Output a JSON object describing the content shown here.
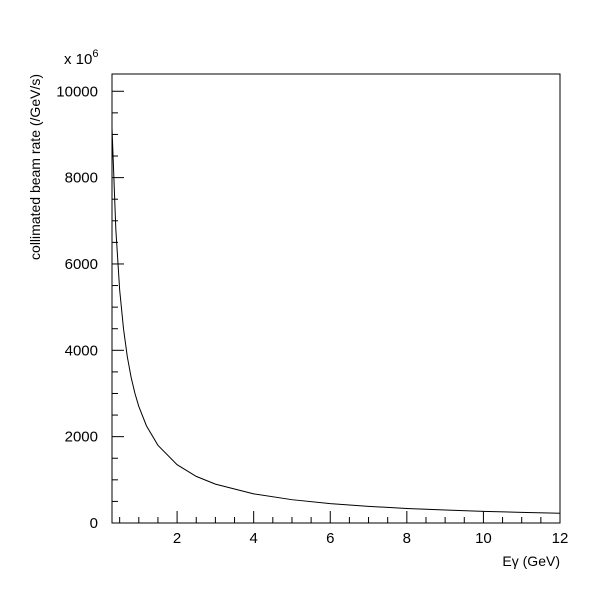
{
  "chart_data": {
    "type": "line",
    "title": "",
    "xlabel": "Eγ (GeV)",
    "ylabel": "collimated beam rate (/GeV/s)",
    "y_multiplier": "x 10",
    "y_multiplier_exponent": "6",
    "xlim": [
      0.3,
      12
    ],
    "ylim": [
      0,
      10400
    ],
    "x_ticks": [
      2,
      4,
      6,
      8,
      10,
      12
    ],
    "y_ticks": [
      0,
      2000,
      4000,
      6000,
      8000,
      10000
    ],
    "grid": false,
    "legend": "none",
    "series": [
      {
        "x": [
          0.3,
          0.4,
          0.5,
          0.6,
          0.7,
          0.8,
          0.9,
          1.0,
          1.2,
          1.5,
          2.0,
          2.5,
          3.0,
          4.0,
          5.0,
          6.0,
          7.0,
          8.0,
          9.0,
          10.0,
          11.0,
          12.0
        ],
        "values": [
          9150,
          6800,
          5400,
          4500,
          3850,
          3370,
          3000,
          2700,
          2250,
          1800,
          1350,
          1080,
          900,
          675,
          540,
          450,
          385,
          337,
          300,
          270,
          245,
          225
        ]
      }
    ]
  }
}
